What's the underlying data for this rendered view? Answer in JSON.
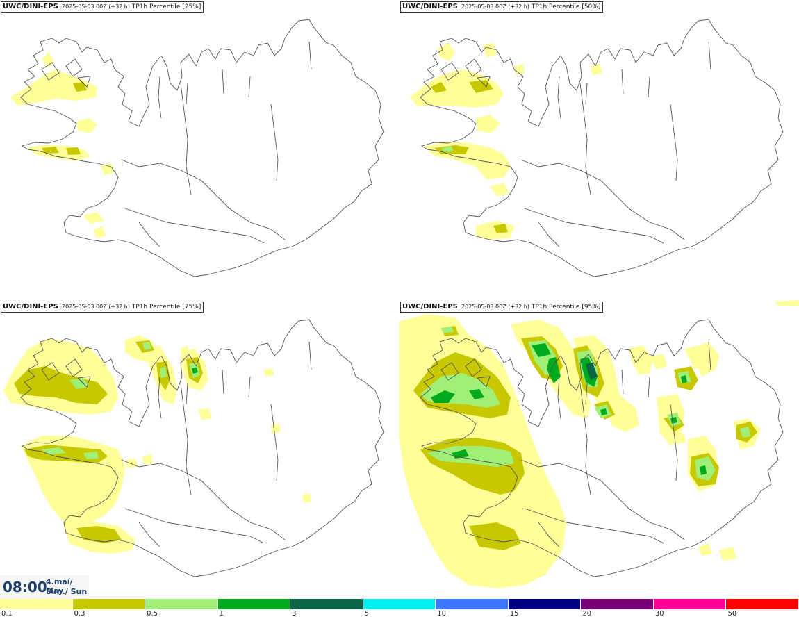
{
  "panels": [
    {
      "model": "UWC/DINI-EPS",
      "run": ": 2025-05-03 00Z (+32 h)",
      "title": " TP1h Percentile [25%]",
      "percentile": 25
    },
    {
      "model": "UWC/DINI-EPS",
      "run": ": 2025-05-03 00Z (+32 h)",
      "title": " TP1h Percentile [50%]",
      "percentile": 50
    },
    {
      "model": "UWC/DINI-EPS",
      "run": ": 2025-05-03 00Z (+32 h)",
      "title": " TP1h Percentile [75%]",
      "percentile": 75
    },
    {
      "model": "UWC/DINI-EPS",
      "run": ": 2025-05-03 00Z (+32 h)",
      "title": " TP1h Percentile [95%]",
      "percentile": 95
    }
  ],
  "valid_time": {
    "time": "08:00",
    "date_line1": "4.maí/ May",
    "date_line2": "Sun./ Sun"
  },
  "legend": {
    "bins": [
      {
        "label": "0.1",
        "color": "#ffff99"
      },
      {
        "label": "0.3",
        "color": "#c8c800"
      },
      {
        "label": "0.5",
        "color": "#a0f078"
      },
      {
        "label": "1",
        "color": "#00aa1e"
      },
      {
        "label": "3",
        "color": "#0a6446"
      },
      {
        "label": "5",
        "color": "#00f0f0"
      },
      {
        "label": "10",
        "color": "#3c78ff"
      },
      {
        "label": "15",
        "color": "#000082"
      },
      {
        "label": "20",
        "color": "#780078"
      },
      {
        "label": "30",
        "color": "#ff0096"
      },
      {
        "label": "50",
        "color": "#ff0000"
      }
    ]
  }
}
